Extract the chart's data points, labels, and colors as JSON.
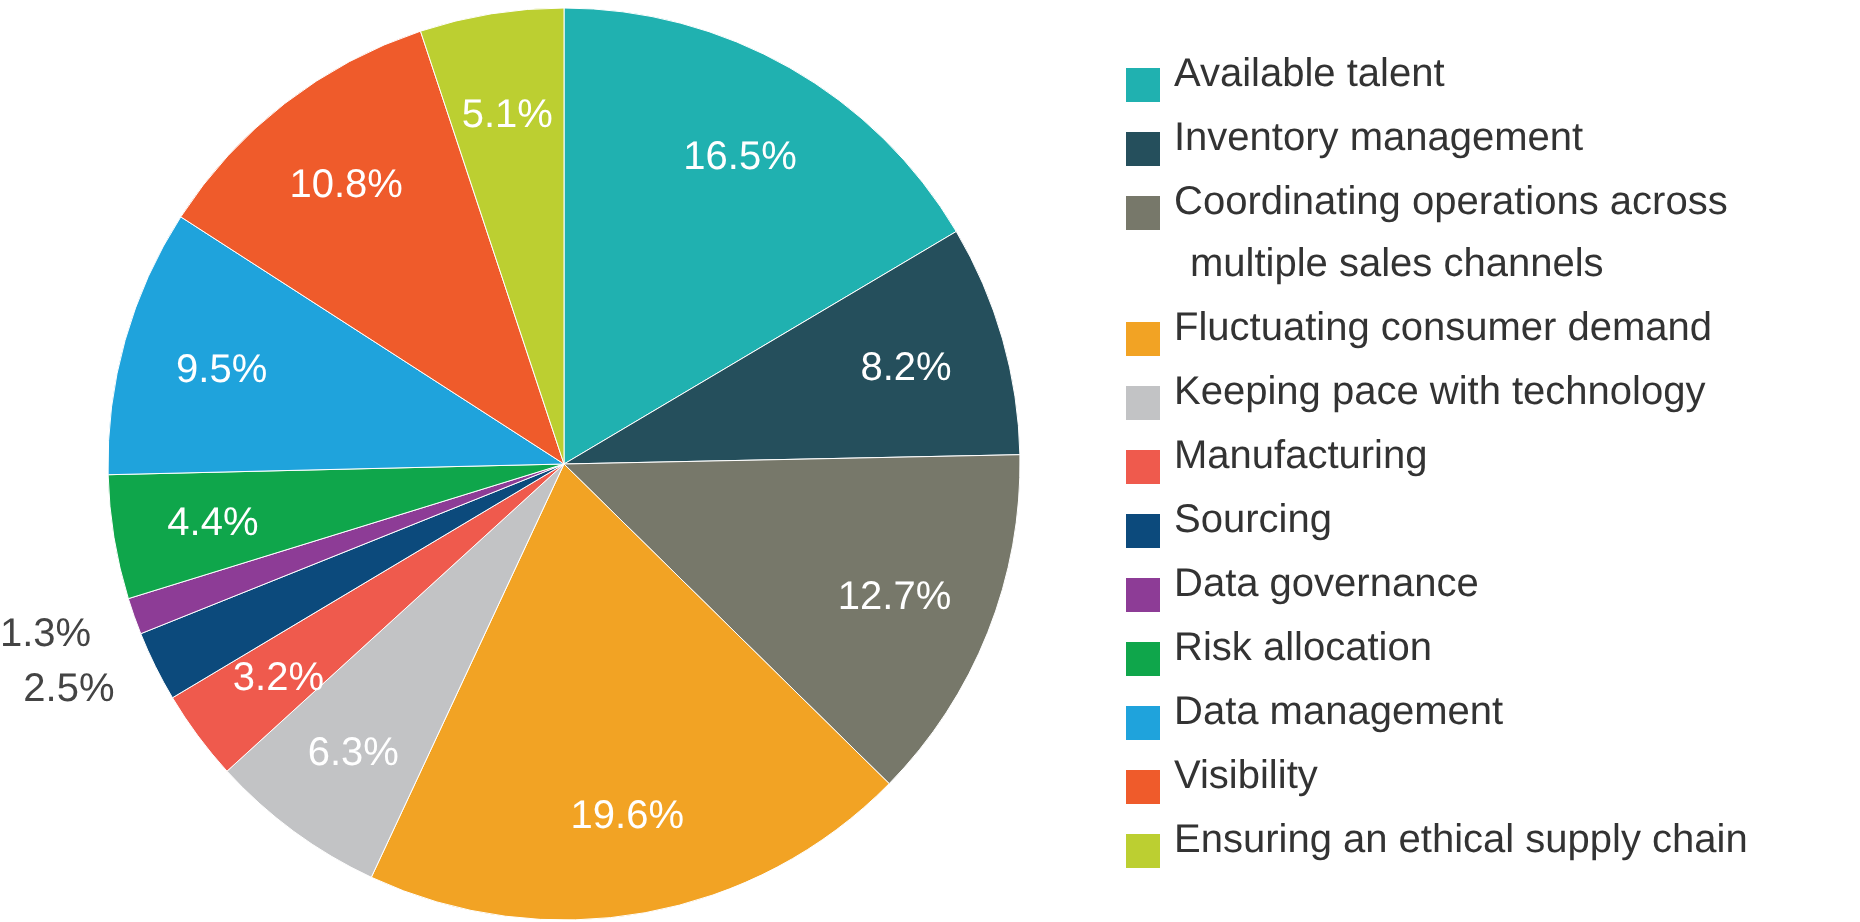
{
  "chart_data": {
    "type": "pie",
    "categories": [
      "Available talent",
      "Inventory management",
      "Coordinating operations across multiple sales channels",
      "Fluctuating consumer demand",
      "Keeping pace with technology",
      "Manufacturing",
      "Sourcing",
      "Data governance",
      "Risk allocation",
      "Data management",
      "Visibility",
      "Ensuring an ethical supply chain"
    ],
    "values": [
      16.5,
      8.2,
      12.7,
      19.6,
      6.3,
      3.2,
      2.5,
      1.3,
      4.4,
      9.5,
      10.8,
      5.1
    ],
    "colors": [
      "#20b1b0",
      "#254f5c",
      "#77786a",
      "#f2a324",
      "#c2c3c5",
      "#ef5a4d",
      "#0c4a7c",
      "#8d3c96",
      "#0fa64b",
      "#1fa3dc",
      "#ef5b2b",
      "#bccf31"
    ],
    "value_labels": [
      "16.5%",
      "8.2%",
      "12.7%",
      "19.6%",
      "6.3%",
      "3.2%",
      "2.5%",
      "1.3%",
      "4.4%",
      "9.5%",
      "10.8%",
      "5.1%"
    ],
    "legend": "right"
  }
}
